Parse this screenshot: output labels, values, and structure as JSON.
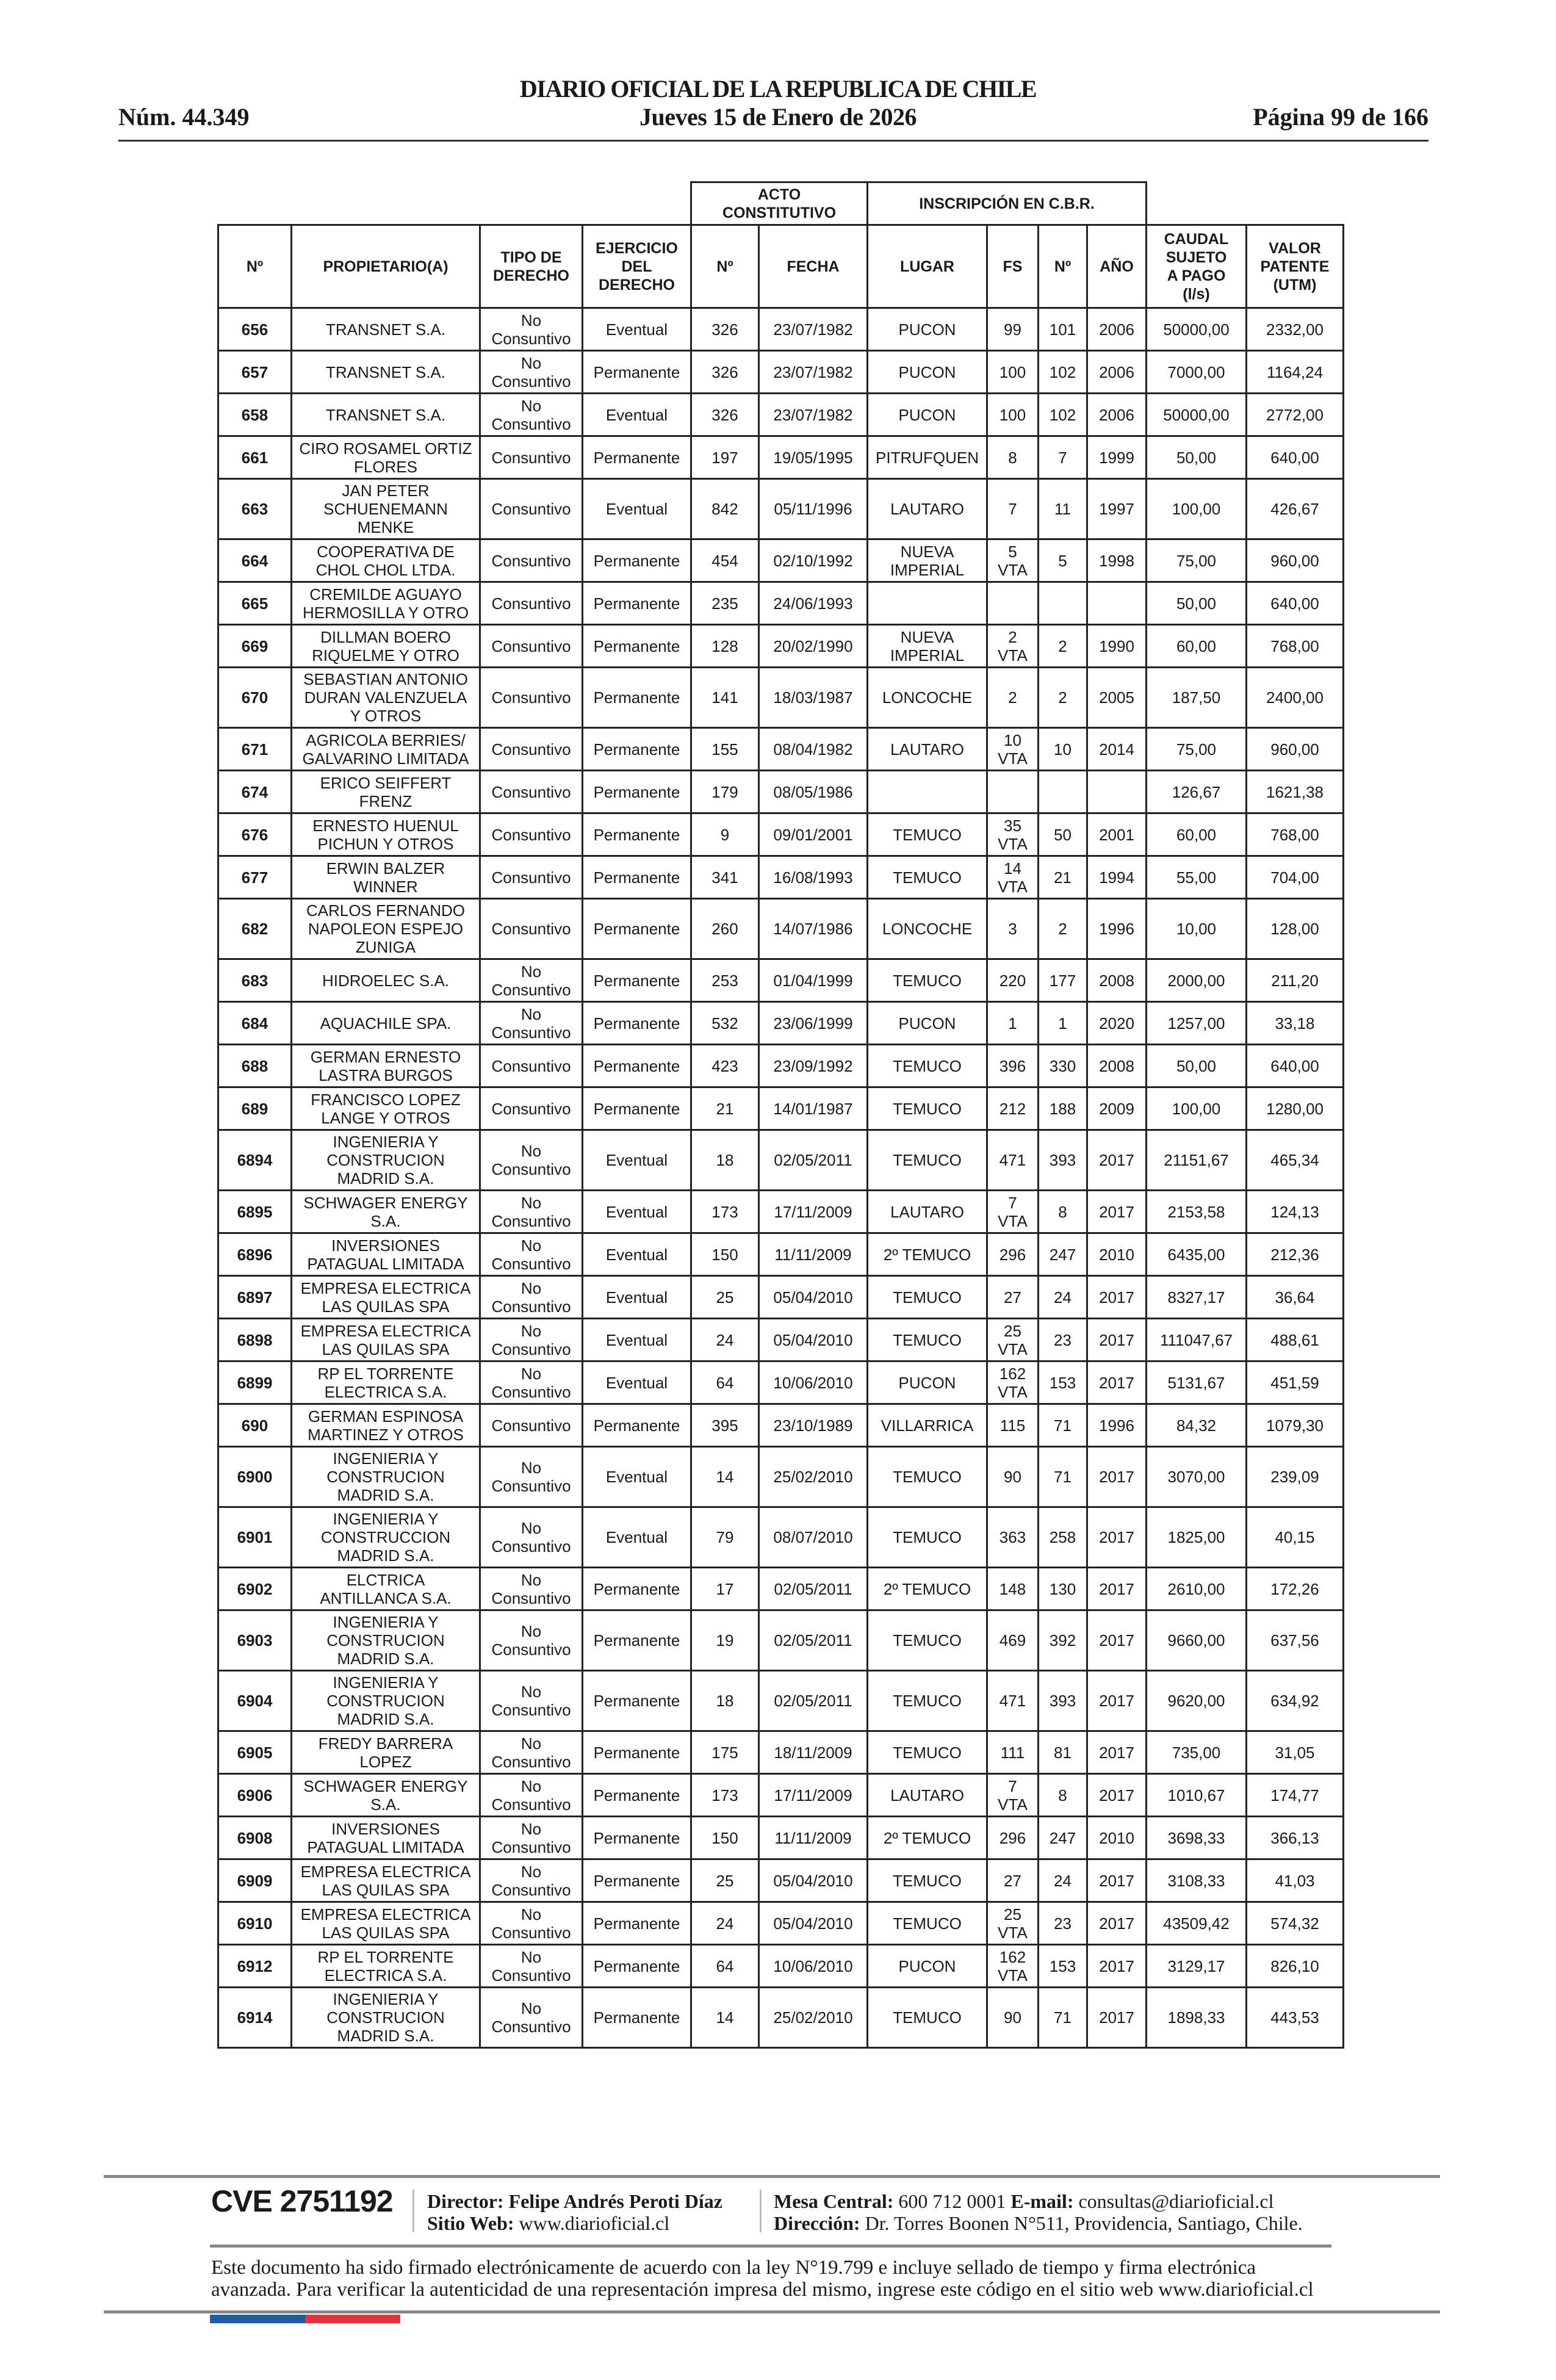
{
  "header": {
    "title": "DIARIO OFICIAL DE LA REPUBLICA DE CHILE",
    "date": "Jueves 15 de Enero de 2026",
    "number": "Núm. 44.349",
    "page": "Página 99 de 166"
  },
  "table": {
    "group_headers": {
      "acto": "ACTO\nCONSTITUTIVO",
      "inscripcion": "INSCRIPCIÓN EN C.B.R."
    },
    "columns": [
      "Nº",
      "PROPIETARIO(A)",
      "TIPO DE\nDERECHO",
      "EJERCICIO\nDEL\nDERECHO",
      "Nº",
      "FECHA",
      "LUGAR",
      "FS",
      "Nº",
      "AÑO",
      "CAUDAL\nSUJETO\nA PAGO\n(l/s)",
      "VALOR\nPATENTE\n(UTM)"
    ],
    "rows": [
      [
        "656",
        "TRANSNET S.A.",
        "No\nConsuntivo",
        "Eventual",
        "326",
        "23/07/1982",
        "PUCON",
        "99",
        "101",
        "2006",
        "50000,00",
        "2332,00"
      ],
      [
        "657",
        "TRANSNET S.A.",
        "No\nConsuntivo",
        "Permanente",
        "326",
        "23/07/1982",
        "PUCON",
        "100",
        "102",
        "2006",
        "7000,00",
        "1164,24"
      ],
      [
        "658",
        "TRANSNET S.A.",
        "No\nConsuntivo",
        "Eventual",
        "326",
        "23/07/1982",
        "PUCON",
        "100",
        "102",
        "2006",
        "50000,00",
        "2772,00"
      ],
      [
        "661",
        "CIRO ROSAMEL ORTIZ\nFLORES",
        "Consuntivo",
        "Permanente",
        "197",
        "19/05/1995",
        "PITRUFQUEN",
        "8",
        "7",
        "1999",
        "50,00",
        "640,00"
      ],
      [
        "663",
        "JAN PETER\nSCHUENEMANN\nMENKE",
        "Consuntivo",
        "Eventual",
        "842",
        "05/11/1996",
        "LAUTARO",
        "7",
        "11",
        "1997",
        "100,00",
        "426,67"
      ],
      [
        "664",
        "COOPERATIVA DE\nCHOL CHOL LTDA.",
        "Consuntivo",
        "Permanente",
        "454",
        "02/10/1992",
        "NUEVA\nIMPERIAL",
        "5\nVTA",
        "5",
        "1998",
        "75,00",
        "960,00"
      ],
      [
        "665",
        "CREMILDE AGUAYO\nHERMOSILLA Y OTRO",
        "Consuntivo",
        "Permanente",
        "235",
        "24/06/1993",
        "",
        "",
        "",
        "",
        "50,00",
        "640,00"
      ],
      [
        "669",
        "DILLMAN BOERO\nRIQUELME Y OTRO",
        "Consuntivo",
        "Permanente",
        "128",
        "20/02/1990",
        "NUEVA\nIMPERIAL",
        "2\nVTA",
        "2",
        "1990",
        "60,00",
        "768,00"
      ],
      [
        "670",
        "SEBASTIAN ANTONIO\nDURAN VALENZUELA\nY OTROS",
        "Consuntivo",
        "Permanente",
        "141",
        "18/03/1987",
        "LONCOCHE",
        "2",
        "2",
        "2005",
        "187,50",
        "2400,00"
      ],
      [
        "671",
        "AGRICOLA BERRIES/\nGALVARINO LIMITADA",
        "Consuntivo",
        "Permanente",
        "155",
        "08/04/1982",
        "LAUTARO",
        "10\nVTA",
        "10",
        "2014",
        "75,00",
        "960,00"
      ],
      [
        "674",
        "ERICO SEIFFERT\nFRENZ",
        "Consuntivo",
        "Permanente",
        "179",
        "08/05/1986",
        "",
        "",
        "",
        "",
        "126,67",
        "1621,38"
      ],
      [
        "676",
        "ERNESTO HUENUL\nPICHUN Y OTROS",
        "Consuntivo",
        "Permanente",
        "9",
        "09/01/2001",
        "TEMUCO",
        "35\nVTA",
        "50",
        "2001",
        "60,00",
        "768,00"
      ],
      [
        "677",
        "ERWIN BALZER\nWINNER",
        "Consuntivo",
        "Permanente",
        "341",
        "16/08/1993",
        "TEMUCO",
        "14\nVTA",
        "21",
        "1994",
        "55,00",
        "704,00"
      ],
      [
        "682",
        "CARLOS FERNANDO\nNAPOLEON ESPEJO\nZUNIGA",
        "Consuntivo",
        "Permanente",
        "260",
        "14/07/1986",
        "LONCOCHE",
        "3",
        "2",
        "1996",
        "10,00",
        "128,00"
      ],
      [
        "683",
        "HIDROELEC S.A.",
        "No\nConsuntivo",
        "Permanente",
        "253",
        "01/04/1999",
        "TEMUCO",
        "220",
        "177",
        "2008",
        "2000,00",
        "211,20"
      ],
      [
        "684",
        "AQUACHILE SPA.",
        "No\nConsuntivo",
        "Permanente",
        "532",
        "23/06/1999",
        "PUCON",
        "1",
        "1",
        "2020",
        "1257,00",
        "33,18"
      ],
      [
        "688",
        "GERMAN ERNESTO\nLASTRA BURGOS",
        "Consuntivo",
        "Permanente",
        "423",
        "23/09/1992",
        "TEMUCO",
        "396",
        "330",
        "2008",
        "50,00",
        "640,00"
      ],
      [
        "689",
        "FRANCISCO LOPEZ\nLANGE Y OTROS",
        "Consuntivo",
        "Permanente",
        "21",
        "14/01/1987",
        "TEMUCO",
        "212",
        "188",
        "2009",
        "100,00",
        "1280,00"
      ],
      [
        "6894",
        "INGENIERIA Y\nCONSTRUCION\nMADRID S.A.",
        "No\nConsuntivo",
        "Eventual",
        "18",
        "02/05/2011",
        "TEMUCO",
        "471",
        "393",
        "2017",
        "21151,67",
        "465,34"
      ],
      [
        "6895",
        "SCHWAGER ENERGY\nS.A.",
        "No\nConsuntivo",
        "Eventual",
        "173",
        "17/11/2009",
        "LAUTARO",
        "7\nVTA",
        "8",
        "2017",
        "2153,58",
        "124,13"
      ],
      [
        "6896",
        "INVERSIONES\nPATAGUAL LIMITADA",
        "No\nConsuntivo",
        "Eventual",
        "150",
        "11/11/2009",
        "2º TEMUCO",
        "296",
        "247",
        "2010",
        "6435,00",
        "212,36"
      ],
      [
        "6897",
        "EMPRESA ELECTRICA\nLAS QUILAS SPA",
        "No\nConsuntivo",
        "Eventual",
        "25",
        "05/04/2010",
        "TEMUCO",
        "27",
        "24",
        "2017",
        "8327,17",
        "36,64"
      ],
      [
        "6898",
        "EMPRESA ELECTRICA\nLAS QUILAS SPA",
        "No\nConsuntivo",
        "Eventual",
        "24",
        "05/04/2010",
        "TEMUCO",
        "25\nVTA",
        "23",
        "2017",
        "111047,67",
        "488,61"
      ],
      [
        "6899",
        "RP EL TORRENTE\nELECTRICA S.A.",
        "No\nConsuntivo",
        "Eventual",
        "64",
        "10/06/2010",
        "PUCON",
        "162\nVTA",
        "153",
        "2017",
        "5131,67",
        "451,59"
      ],
      [
        "690",
        "GERMAN ESPINOSA\nMARTINEZ Y OTROS",
        "Consuntivo",
        "Permanente",
        "395",
        "23/10/1989",
        "VILLARRICA",
        "115",
        "71",
        "1996",
        "84,32",
        "1079,30"
      ],
      [
        "6900",
        "INGENIERIA Y\nCONSTRUCION\nMADRID S.A.",
        "No\nConsuntivo",
        "Eventual",
        "14",
        "25/02/2010",
        "TEMUCO",
        "90",
        "71",
        "2017",
        "3070,00",
        "239,09"
      ],
      [
        "6901",
        "INGENIERIA Y\nCONSTRUCCION\nMADRID S.A.",
        "No\nConsuntivo",
        "Eventual",
        "79",
        "08/07/2010",
        "TEMUCO",
        "363",
        "258",
        "2017",
        "1825,00",
        "40,15"
      ],
      [
        "6902",
        "ELCTRICA\nANTILLANCA S.A.",
        "No\nConsuntivo",
        "Permanente",
        "17",
        "02/05/2011",
        "2º TEMUCO",
        "148",
        "130",
        "2017",
        "2610,00",
        "172,26"
      ],
      [
        "6903",
        "INGENIERIA Y\nCONSTRUCION\nMADRID S.A.",
        "No\nConsuntivo",
        "Permanente",
        "19",
        "02/05/2011",
        "TEMUCO",
        "469",
        "392",
        "2017",
        "9660,00",
        "637,56"
      ],
      [
        "6904",
        "INGENIERIA Y\nCONSTRUCION\nMADRID S.A.",
        "No\nConsuntivo",
        "Permanente",
        "18",
        "02/05/2011",
        "TEMUCO",
        "471",
        "393",
        "2017",
        "9620,00",
        "634,92"
      ],
      [
        "6905",
        "FREDY BARRERA\nLOPEZ",
        "No\nConsuntivo",
        "Permanente",
        "175",
        "18/11/2009",
        "TEMUCO",
        "111",
        "81",
        "2017",
        "735,00",
        "31,05"
      ],
      [
        "6906",
        "SCHWAGER ENERGY\nS.A.",
        "No\nConsuntivo",
        "Permanente",
        "173",
        "17/11/2009",
        "LAUTARO",
        "7\nVTA",
        "8",
        "2017",
        "1010,67",
        "174,77"
      ],
      [
        "6908",
        "INVERSIONES\nPATAGUAL LIMITADA",
        "No\nConsuntivo",
        "Permanente",
        "150",
        "11/11/2009",
        "2º TEMUCO",
        "296",
        "247",
        "2010",
        "3698,33",
        "366,13"
      ],
      [
        "6909",
        "EMPRESA ELECTRICA\nLAS QUILAS SPA",
        "No\nConsuntivo",
        "Permanente",
        "25",
        "05/04/2010",
        "TEMUCO",
        "27",
        "24",
        "2017",
        "3108,33",
        "41,03"
      ],
      [
        "6910",
        "EMPRESA ELECTRICA\nLAS QUILAS SPA",
        "No\nConsuntivo",
        "Permanente",
        "24",
        "05/04/2010",
        "TEMUCO",
        "25\nVTA",
        "23",
        "2017",
        "43509,42",
        "574,32"
      ],
      [
        "6912",
        "RP EL TORRENTE\nELECTRICA S.A.",
        "No\nConsuntivo",
        "Permanente",
        "64",
        "10/06/2010",
        "PUCON",
        "162\nVTA",
        "153",
        "2017",
        "3129,17",
        "826,10"
      ],
      [
        "6914",
        "INGENIERIA Y\nCONSTRUCION\nMADRID S.A.",
        "No\nConsuntivo",
        "Permanente",
        "14",
        "25/02/2010",
        "TEMUCO",
        "90",
        "71",
        "2017",
        "1898,33",
        "443,53"
      ]
    ]
  },
  "footer": {
    "cve": "CVE 2751192",
    "director_label": "Director:",
    "director": "Felipe Andrés Peroti Díaz",
    "web_label": "Sitio Web:",
    "web": "www.diarioficial.cl",
    "phone_label": "Mesa Central:",
    "phone": "600 712 0001",
    "email_label": "E-mail:",
    "email": "consultas@diarioficial.cl",
    "address_label": "Dirección:",
    "address": "Dr. Torres Boonen N°511, Providencia, Santiago, Chile.",
    "disclaimer": "Este documento ha sido firmado electrónicamente de acuerdo con la ley N°19.799 e incluye sellado de tiempo y firma electrónica avanzada. Para verificar la autenticidad de una representación impresa del mismo, ingrese este código en el sitio web www.diarioficial.cl"
  },
  "colors": {
    "flag_blue": "#1f5aa6",
    "flag_red": "#e8323c"
  }
}
